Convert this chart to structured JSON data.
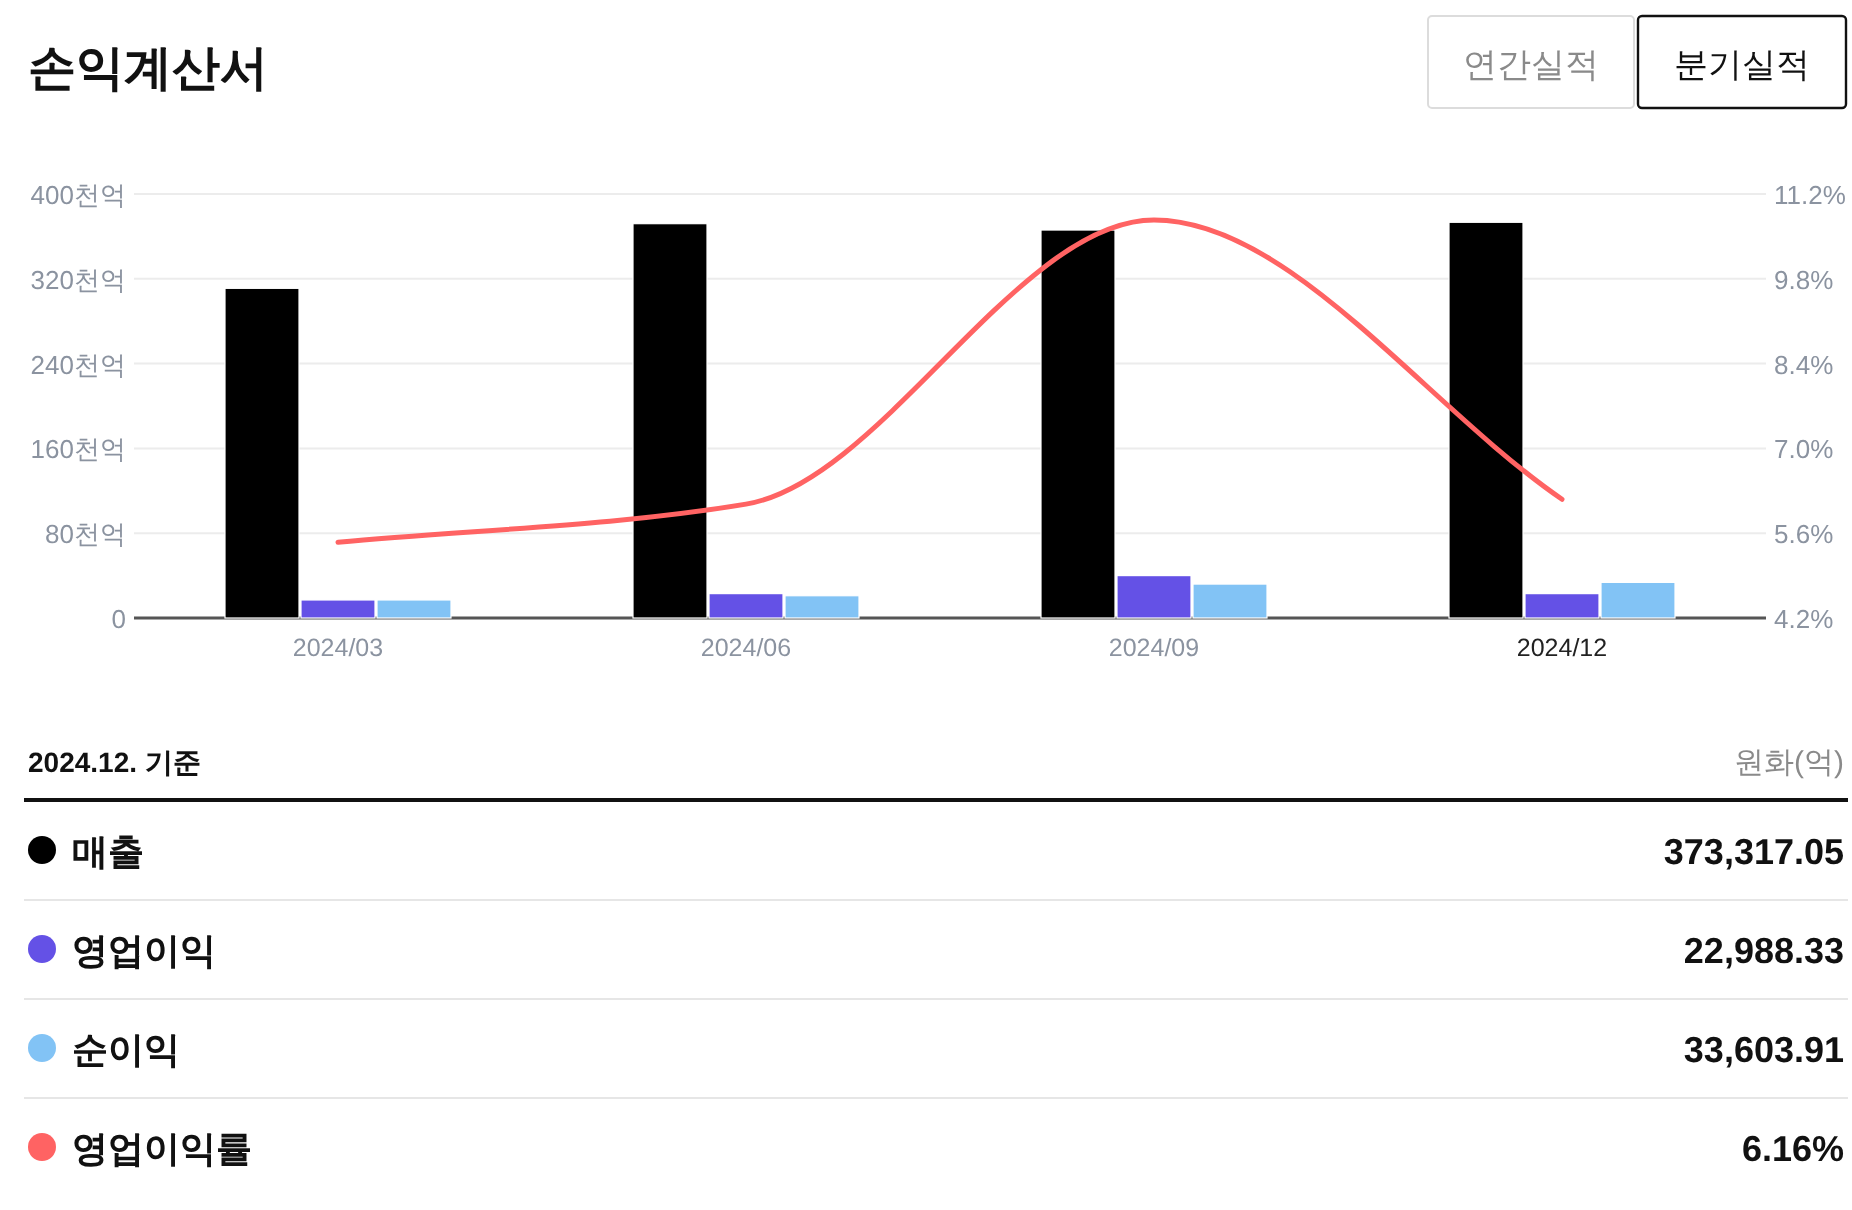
{
  "chart_data": {
    "type": "bar",
    "title": "손익계산서",
    "categories": [
      "2024/03",
      "2024/06",
      "2024/09",
      "2024/12"
    ],
    "series": [
      {
        "name": "매출",
        "color": "#000000",
        "values": [
          311,
          372,
          366,
          373.3
        ]
      },
      {
        "name": "영업이익",
        "color": "#6451e6",
        "values": [
          17,
          23,
          40,
          22.99
        ]
      },
      {
        "name": "순이익",
        "color": "#82c3f5",
        "values": [
          17,
          21,
          32,
          33.6
        ]
      },
      {
        "name": "영업이익률",
        "color": "#ff6363",
        "type": "line",
        "axis": "y2",
        "values": [
          5.45,
          6.08,
          10.77,
          6.16
        ]
      }
    ],
    "ylim": [
      0,
      400
    ],
    "yticks": [
      0,
      {
        "value": 80,
        "label": "80천억"
      },
      {
        "value": 160,
        "label": "160천억"
      },
      {
        "value": 240,
        "label": "240천억"
      },
      {
        "value": 320,
        "label": "320천억"
      },
      {
        "value": 400,
        "label": "400천억"
      }
    ],
    "y2lim": [
      4.2,
      11.2
    ],
    "y2ticks": [
      {
        "value": 4.2,
        "label": "4.2%"
      },
      {
        "value": 5.6,
        "label": "5.6%"
      },
      {
        "value": 7.0,
        "label": "7.0%"
      },
      {
        "value": 8.4,
        "label": "8.4%"
      },
      {
        "value": 9.8,
        "label": "9.8%"
      },
      {
        "value": 11.2,
        "label": "11.2%"
      }
    ],
    "grid": "y",
    "legend": "bottom",
    "annotations": [
      "연간실적",
      "분기실적",
      "2024.12. 기준",
      "원화(억)",
      "373,317.05",
      "22,988.33",
      "33,603.91",
      "6.16%"
    ]
  }
}
